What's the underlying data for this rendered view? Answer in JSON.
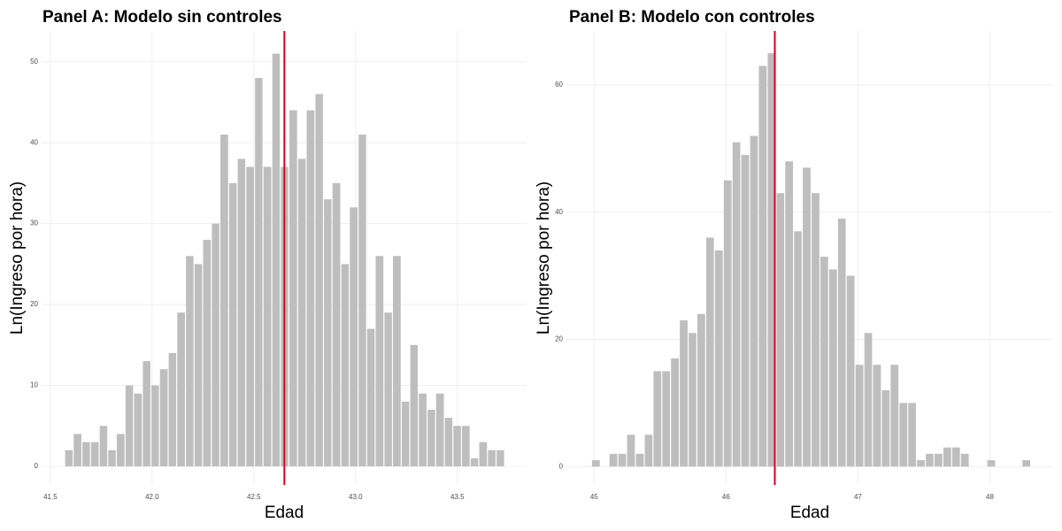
{
  "chart_data": [
    {
      "type": "histogram",
      "title": "Panel A: Modelo sin controles",
      "x_label": "Edad",
      "y_label": "Ln(Ingreso por hora)",
      "bins": [
        41.57,
        41.612,
        41.655,
        41.697,
        41.74,
        41.782,
        41.824,
        41.867,
        41.909,
        41.952,
        41.994,
        42.036,
        42.079,
        42.121,
        42.164,
        42.206,
        42.248,
        42.291,
        42.333,
        42.376,
        42.418,
        42.46,
        42.503,
        42.545,
        42.588,
        42.63,
        42.672,
        42.715,
        42.757,
        42.8,
        42.842,
        42.884,
        42.927,
        42.969,
        43.012,
        43.054,
        43.096,
        43.139,
        43.181,
        43.224,
        43.266,
        43.308,
        43.351,
        43.393,
        43.436,
        43.478,
        43.52,
        43.563,
        43.605,
        43.648,
        43.69,
        43.732
      ],
      "values": [
        2,
        4,
        3,
        3,
        5,
        2,
        4,
        10,
        9,
        13,
        10,
        12,
        14,
        19,
        26,
        25,
        28,
        30,
        41,
        35,
        38,
        37,
        48,
        37,
        51,
        37,
        44,
        38,
        44,
        46,
        33,
        35,
        25,
        32,
        41,
        17,
        26,
        19,
        26,
        8,
        15,
        9,
        7,
        9,
        6,
        5,
        5,
        1,
        3,
        2,
        2
      ],
      "color": "#bebebe",
      "vline": 42.65,
      "vline_color": "#d0021b",
      "xlim": [
        41.457,
        43.84
      ],
      "xticks": [
        41.5,
        {
          "value": 42,
          "label": "42.0"
        },
        42.5,
        {
          "value": 43,
          "label": "43.0"
        },
        43.5
      ],
      "ylim": [
        -2.3,
        53.8
      ],
      "yticks": [
        0,
        10,
        20,
        30,
        40,
        50
      ],
      "grid": true
    },
    {
      "type": "histogram",
      "title": "Panel B: Modelo con controles",
      "x_label": "Edad",
      "y_label": "Ln(Ingreso por hora)",
      "bins": [
        44.98,
        45.047,
        45.113,
        45.18,
        45.246,
        45.313,
        45.38,
        45.446,
        45.513,
        45.579,
        45.646,
        45.713,
        45.779,
        45.846,
        45.912,
        45.979,
        46.046,
        46.112,
        46.179,
        46.245,
        46.312,
        46.379,
        46.445,
        46.512,
        46.578,
        46.645,
        46.712,
        46.778,
        46.845,
        46.911,
        46.978,
        47.045,
        47.111,
        47.178,
        47.244,
        47.311,
        47.378,
        47.444,
        47.511,
        47.577,
        47.644,
        47.711,
        47.777,
        47.844,
        47.91,
        47.977,
        48.044,
        48.11,
        48.177,
        48.243,
        48.31
      ],
      "values": [
        1,
        0,
        2,
        2,
        5,
        2,
        5,
        15,
        15,
        17,
        23,
        21,
        24,
        36,
        34,
        45,
        51,
        49,
        52,
        63,
        65,
        43,
        48,
        37,
        47,
        43,
        33,
        31,
        39,
        30,
        16,
        21,
        16,
        12,
        16,
        10,
        10,
        1,
        2,
        2,
        3,
        3,
        2,
        0,
        0,
        1,
        0,
        0,
        0,
        1
      ],
      "color": "#bebebe",
      "vline": 46.37,
      "vline_color": "#d0021b",
      "xlim": [
        44.79,
        48.48
      ],
      "xticks": [
        45,
        46,
        47,
        48
      ],
      "ylim": [
        -2.9,
        68.5
      ],
      "yticks": [
        0,
        20,
        40,
        60
      ],
      "grid": true
    }
  ]
}
